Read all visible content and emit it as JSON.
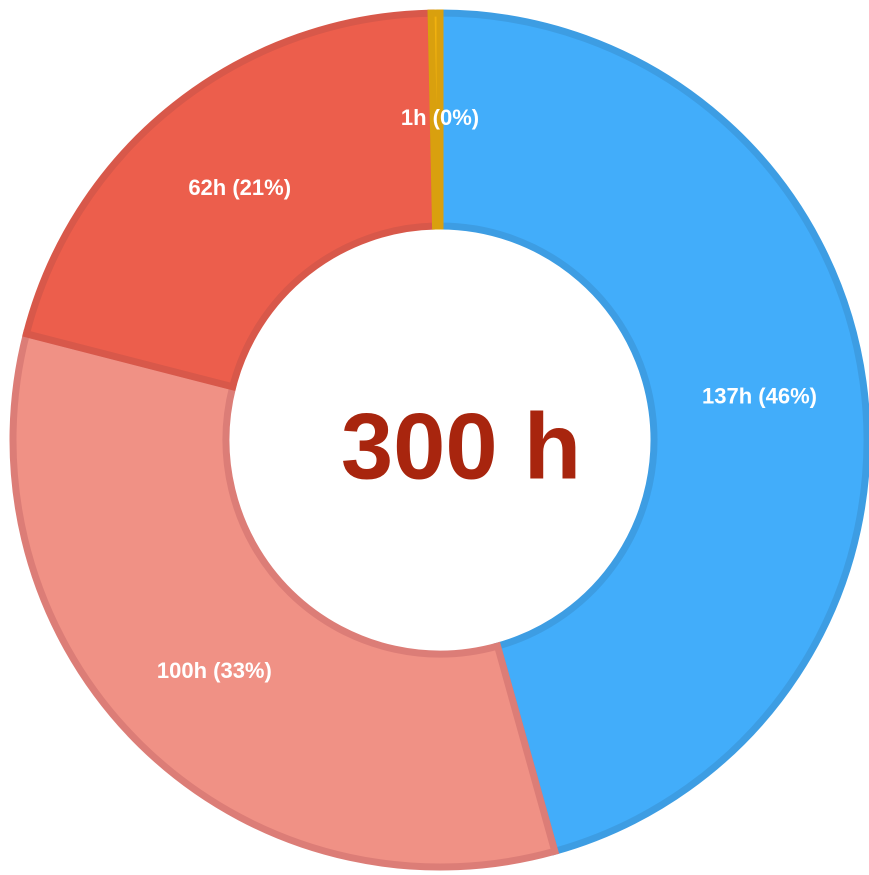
{
  "chart_data": {
    "type": "pie",
    "style": "donut",
    "center_text": "300 h",
    "center_color": "#a8250e",
    "total": 300,
    "slices": [
      {
        "value": 137,
        "label": "137h (46%)",
        "color": "#42adfa",
        "border": "#3d9de3"
      },
      {
        "value": 100,
        "label": "100h (33%)",
        "color": "#f09185",
        "border": "#dc7d77"
      },
      {
        "value": 62,
        "label": "62h (21%)",
        "color": "#ec5e4c",
        "border": "#d8584a"
      },
      {
        "value": 1,
        "label": "1h (0%)",
        "color": "#f1b20f",
        "border": "#d9a00e"
      }
    ]
  }
}
